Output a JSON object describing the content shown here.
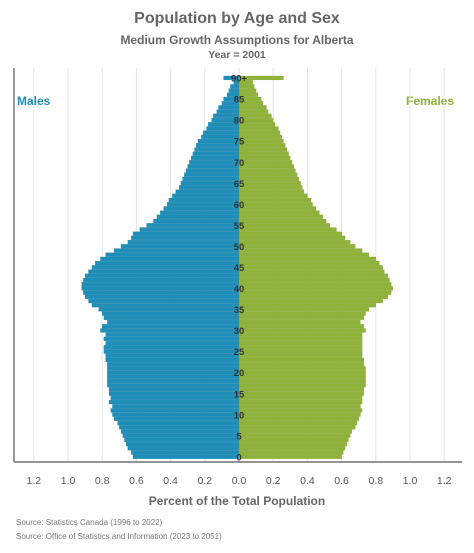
{
  "title": "Population by Age and Sex",
  "subtitle": "Medium Growth Assumptions for Alberta",
  "year_label": "Year = 2001",
  "xlabel": "Percent of the Total Population",
  "sources": [
    "Source: Statistics Canada (1996 to 2022)",
    "Source: Office of Statistics and Information (2023 to 2051)"
  ],
  "colors": {
    "males": "#1f8fb9",
    "females": "#8fb23a",
    "grid": "#e4e4e4",
    "axis": "#555555",
    "text": "#666666"
  },
  "chart_data": {
    "type": "bar",
    "orientation": "horizontal-pyramid",
    "legend": {
      "males": "Males",
      "females": "Females",
      "placement": "top-left / top-right"
    },
    "xlim": [
      -1.2,
      1.2
    ],
    "x_ticks": [
      -1.2,
      -1.0,
      -0.8,
      -0.6,
      -0.4,
      -0.2,
      0,
      0.2,
      0.4,
      0.6,
      0.8,
      1.0,
      1.2
    ],
    "x_tick_labels": [
      "1.2",
      "1.0",
      "0.8",
      "0.6",
      "0.4",
      "0.2",
      "0.0",
      "0.2",
      "0.4",
      "0.6",
      "0.8",
      "1.0",
      "1.2"
    ],
    "age_ticks": [
      "0",
      "5",
      "10",
      "15",
      "20",
      "25",
      "30",
      "35",
      "40",
      "45",
      "50",
      "55",
      "60",
      "65",
      "70",
      "75",
      "80",
      "85",
      "90+"
    ],
    "grid": true,
    "ages": [
      0,
      1,
      2,
      3,
      4,
      5,
      6,
      7,
      8,
      9,
      10,
      11,
      12,
      13,
      14,
      15,
      16,
      17,
      18,
      19,
      20,
      21,
      22,
      23,
      24,
      25,
      26,
      27,
      28,
      29,
      30,
      31,
      32,
      33,
      34,
      35,
      36,
      37,
      38,
      39,
      40,
      41,
      42,
      43,
      44,
      45,
      46,
      47,
      48,
      49,
      50,
      51,
      52,
      53,
      54,
      55,
      56,
      57,
      58,
      59,
      60,
      61,
      62,
      63,
      64,
      65,
      66,
      67,
      68,
      69,
      70,
      71,
      72,
      73,
      74,
      75,
      76,
      77,
      78,
      79,
      80,
      81,
      82,
      83,
      84,
      85,
      86,
      87,
      88,
      89,
      90
    ],
    "series": [
      {
        "name": "Males",
        "values": [
          0.62,
          0.63,
          0.65,
          0.66,
          0.67,
          0.68,
          0.69,
          0.7,
          0.71,
          0.73,
          0.74,
          0.75,
          0.74,
          0.76,
          0.75,
          0.76,
          0.76,
          0.77,
          0.77,
          0.77,
          0.77,
          0.77,
          0.77,
          0.78,
          0.78,
          0.79,
          0.79,
          0.78,
          0.79,
          0.78,
          0.81,
          0.8,
          0.77,
          0.79,
          0.8,
          0.82,
          0.86,
          0.88,
          0.9,
          0.91,
          0.92,
          0.92,
          0.91,
          0.9,
          0.88,
          0.86,
          0.84,
          0.81,
          0.78,
          0.73,
          0.69,
          0.65,
          0.63,
          0.62,
          0.58,
          0.54,
          0.5,
          0.48,
          0.46,
          0.44,
          0.42,
          0.41,
          0.39,
          0.37,
          0.35,
          0.34,
          0.33,
          0.32,
          0.31,
          0.3,
          0.29,
          0.28,
          0.27,
          0.26,
          0.25,
          0.24,
          0.22,
          0.21,
          0.19,
          0.18,
          0.16,
          0.15,
          0.13,
          0.12,
          0.1,
          0.09,
          0.07,
          0.06,
          0.05,
          0.03,
          0.09
        ]
      },
      {
        "name": "Females",
        "values": [
          0.6,
          0.61,
          0.62,
          0.63,
          0.64,
          0.65,
          0.66,
          0.68,
          0.69,
          0.7,
          0.71,
          0.72,
          0.71,
          0.72,
          0.72,
          0.73,
          0.73,
          0.74,
          0.74,
          0.74,
          0.74,
          0.74,
          0.73,
          0.73,
          0.72,
          0.72,
          0.72,
          0.72,
          0.72,
          0.72,
          0.74,
          0.73,
          0.71,
          0.73,
          0.74,
          0.76,
          0.8,
          0.84,
          0.87,
          0.89,
          0.9,
          0.89,
          0.88,
          0.87,
          0.85,
          0.84,
          0.82,
          0.8,
          0.76,
          0.72,
          0.68,
          0.65,
          0.62,
          0.6,
          0.57,
          0.53,
          0.51,
          0.49,
          0.47,
          0.45,
          0.43,
          0.42,
          0.4,
          0.38,
          0.37,
          0.36,
          0.35,
          0.34,
          0.33,
          0.32,
          0.31,
          0.3,
          0.29,
          0.28,
          0.27,
          0.26,
          0.25,
          0.24,
          0.23,
          0.21,
          0.2,
          0.19,
          0.17,
          0.16,
          0.14,
          0.13,
          0.11,
          0.1,
          0.09,
          0.08,
          0.26
        ]
      }
    ]
  }
}
